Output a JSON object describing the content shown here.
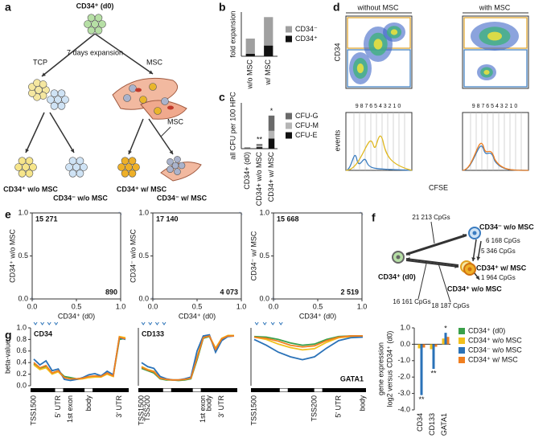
{
  "panel_labels": [
    "a",
    "b",
    "c",
    "d",
    "e",
    "f",
    "g"
  ],
  "diagram_a": {
    "source": "CD34⁺ (d0)",
    "step": "7 days expansion",
    "left_condition": "TCP",
    "right_condition": "MSC",
    "stroma_label": "MSC",
    "outcomes": [
      "CD34⁺ w/o MSC",
      "CD34⁻ w/o MSC",
      "CD34⁺ w/ MSC",
      "CD34⁻ w/ MSC"
    ]
  },
  "flow_d": {
    "columns": [
      "without MSC",
      "with MSC"
    ],
    "top_y_label": "CD34",
    "bottom_y_label": "events",
    "x_label": "CFSE",
    "division_labels": [
      "9 8 7 6 5 4 3 2 1 0",
      "9 8 7 6 5 4 3 2 1 0"
    ]
  },
  "network_f": {
    "nodes": [
      "CD34⁻ w/o MSC",
      "CD34⁺ w/ MSC",
      "CD34⁺ w/o MSC",
      "CD34⁺ (d0)"
    ],
    "edge_labels": [
      "21 213 CpGs",
      "6 168 CpGs",
      "5 346 CpGs",
      "1 964 CpGs",
      "16 161 CpGs",
      "18 187 CpGs"
    ]
  },
  "chart_data": [
    {
      "type": "bar",
      "stacked": true,
      "y_label": "fold expansion",
      "categories": [
        "w/o MSC",
        "w/ MSC"
      ],
      "ylim": [
        0,
        700
      ],
      "series": [
        {
          "name": "CD34⁺",
          "color": "#111111",
          "values": [
            40,
            170
          ],
          "annotations": [
            null,
            "**"
          ]
        },
        {
          "name": "CD34⁻",
          "color": "#a0a0a0",
          "values": [
            240,
            450
          ]
        }
      ]
    },
    {
      "type": "bar",
      "stacked": true,
      "y_label": "all CFU per 100 HPC",
      "categories": [
        "CD34+ (d0)",
        "CD34+ w/o MSC",
        "CD34+ w/ MSC"
      ],
      "ylim": [
        0,
        90
      ],
      "annotations": [
        null,
        "**",
        "*"
      ],
      "series": [
        {
          "name": "CFU-E",
          "color": "#111111",
          "values": [
            1,
            3,
            20
          ]
        },
        {
          "name": "CFU-M",
          "color": "#b5b5b5",
          "values": [
            0.5,
            3,
            15
          ]
        },
        {
          "name": "CFU-G",
          "color": "#6a6a6a",
          "values": [
            1,
            3,
            30
          ]
        }
      ]
    },
    {
      "type": "scatter",
      "x_label": "CD34⁺ (d0)",
      "y_label": "CD34⁺ w/o MSC",
      "xlim": [
        0,
        1
      ],
      "ylim": [
        0,
        1
      ],
      "xticks": [
        {
          "value": 0,
          "label": "0.0"
        },
        0.5,
        {
          "value": 1,
          "label": "1.0"
        }
      ],
      "yticks": [
        {
          "value": 0,
          "label": "0.0"
        },
        0.5,
        {
          "value": 1,
          "label": "1.0"
        }
      ],
      "annotations": [
        "15 271",
        "890"
      ]
    },
    {
      "type": "scatter",
      "x_label": "CD34⁺ (d0)",
      "y_label": "CD34⁻ w/o MSC",
      "xlim": [
        0,
        1
      ],
      "ylim": [
        0,
        1
      ],
      "xticks": [
        {
          "value": 0,
          "label": "0.0"
        },
        0.5,
        {
          "value": 1,
          "label": "1.0"
        }
      ],
      "yticks": [
        {
          "value": 0,
          "label": "0.0"
        },
        0.5,
        {
          "value": 1,
          "label": "1.0"
        }
      ],
      "annotations": [
        "17 140",
        "4 073"
      ]
    },
    {
      "type": "scatter",
      "x_label": "CD34⁺ (d0)",
      "y_label": "CD34⁻ w/ MSC",
      "xlim": [
        0,
        1
      ],
      "ylim": [
        0,
        1
      ],
      "xticks": [
        {
          "value": 0,
          "label": "0.0"
        },
        0.5,
        {
          "value": 1,
          "label": "1.0"
        }
      ],
      "yticks": [
        {
          "value": 0,
          "label": "0.0"
        },
        0.5,
        {
          "value": 1,
          "label": "1.0"
        }
      ],
      "annotations": [
        "15 668",
        "2 519"
      ]
    },
    {
      "type": "line",
      "title": "CD34",
      "title_corner": "top-left",
      "y_label": "beta-value",
      "ylim": [
        0,
        1
      ],
      "yticks": [
        {
          "value": 0,
          "label": "0.0"
        },
        0.2,
        0.4,
        0.6,
        0.8,
        {
          "value": 1,
          "label": "1.0"
        }
      ],
      "categories": [
        "TSS1500",
        null,
        null,
        null,
        "5' UTR",
        null,
        "1st exon",
        null,
        null,
        "body",
        null,
        null,
        null,
        null,
        "3' UTR",
        null
      ],
      "series": [
        {
          "color": "#3aa04a",
          "values": [
            0.38,
            0.3,
            0.33,
            0.22,
            0.26,
            0.16,
            0.14,
            0.12,
            0.13,
            0.15,
            0.17,
            0.16,
            0.21,
            0.17,
            0.8,
            0.82
          ]
        },
        {
          "color": "#f2c01c",
          "values": [
            0.36,
            0.28,
            0.31,
            0.2,
            0.24,
            0.14,
            0.12,
            0.11,
            0.12,
            0.14,
            0.15,
            0.15,
            0.2,
            0.16,
            0.85,
            0.83
          ]
        },
        {
          "color": "#2a72b8",
          "values": [
            0.46,
            0.36,
            0.43,
            0.26,
            0.29,
            0.11,
            0.09,
            0.11,
            0.14,
            0.19,
            0.21,
            0.17,
            0.25,
            0.19,
            0.83,
            0.8
          ]
        },
        {
          "color": "#f07f20",
          "values": [
            0.4,
            0.31,
            0.35,
            0.22,
            0.26,
            0.14,
            0.12,
            0.12,
            0.13,
            0.16,
            0.17,
            0.16,
            0.22,
            0.17,
            0.84,
            0.81
          ]
        }
      ]
    },
    {
      "type": "line",
      "title": "CD133",
      "title_corner": "top-left",
      "ylim": [
        0,
        1
      ],
      "categories": [
        "TSS1500",
        "TSS200",
        null,
        null,
        null,
        null,
        null,
        null,
        null,
        null,
        "1st exon",
        "body",
        null,
        "3' UTR",
        null,
        null
      ],
      "series": [
        {
          "color": "#3aa04a",
          "values": [
            0.3,
            0.26,
            0.22,
            0.12,
            0.1,
            0.1,
            0.09,
            0.1,
            0.12,
            0.45,
            0.82,
            0.85,
            0.62,
            0.8,
            0.86,
            0.86
          ]
        },
        {
          "color": "#f2c01c",
          "values": [
            0.33,
            0.28,
            0.25,
            0.13,
            0.11,
            0.1,
            0.1,
            0.11,
            0.13,
            0.5,
            0.84,
            0.86,
            0.65,
            0.82,
            0.87,
            0.87
          ]
        },
        {
          "color": "#2a72b8",
          "values": [
            0.4,
            0.33,
            0.3,
            0.16,
            0.12,
            0.1,
            0.1,
            0.12,
            0.15,
            0.6,
            0.86,
            0.88,
            0.58,
            0.78,
            0.85,
            0.86
          ]
        },
        {
          "color": "#f07f20",
          "values": [
            0.32,
            0.27,
            0.24,
            0.13,
            0.11,
            0.1,
            0.1,
            0.11,
            0.13,
            0.48,
            0.83,
            0.86,
            0.63,
            0.81,
            0.86,
            0.86
          ]
        }
      ]
    },
    {
      "type": "line",
      "title": "GATA1",
      "title_corner": "bottom-right",
      "ylim": [
        0,
        1
      ],
      "categories": [
        "TSS1500",
        null,
        null,
        null,
        null,
        "TSS200",
        null,
        "5' UTR",
        null,
        "body"
      ],
      "series": [
        {
          "color": "#3aa04a",
          "values": [
            0.85,
            0.84,
            0.8,
            0.74,
            0.7,
            0.72,
            0.8,
            0.85,
            0.86,
            0.86
          ]
        },
        {
          "color": "#f2c01c",
          "values": [
            0.84,
            0.8,
            0.72,
            0.66,
            0.62,
            0.64,
            0.75,
            0.83,
            0.85,
            0.85
          ]
        },
        {
          "color": "#2a72b8",
          "values": [
            0.8,
            0.7,
            0.58,
            0.5,
            0.45,
            0.5,
            0.65,
            0.78,
            0.83,
            0.84
          ]
        },
        {
          "color": "#f07f20",
          "values": [
            0.84,
            0.82,
            0.77,
            0.7,
            0.67,
            0.69,
            0.78,
            0.84,
            0.86,
            0.86
          ]
        }
      ]
    },
    {
      "type": "bar",
      "y_label": [
        "gene expression",
        "log2 versus CD34⁺ (d0)"
      ],
      "categories": [
        "CD34",
        "CD133",
        "GATA1"
      ],
      "ylim": [
        -4,
        1
      ],
      "yticks": [
        {
          "value": -4,
          "label": "-4.0"
        },
        {
          "value": -3,
          "label": "-3.0"
        },
        {
          "value": -2,
          "label": "-2.0"
        },
        {
          "value": -1,
          "label": "-1.0"
        },
        {
          "value": 0,
          "label": "0.0"
        },
        {
          "value": 1,
          "label": "1.0"
        }
      ],
      "series": [
        {
          "name": "CD34⁺ (d0)",
          "color": "#3aa04a",
          "values": [
            0,
            0,
            0
          ]
        },
        {
          "name": "CD34⁺ w/o MSC",
          "color": "#f2c01c",
          "values": [
            -0.25,
            -0.3,
            0.35
          ]
        },
        {
          "name": "CD34⁻ w/o MSC",
          "color": "#2a72b8",
          "values": [
            -3.1,
            -1.5,
            0.7
          ],
          "annotations": [
            "**",
            "**",
            "*"
          ]
        },
        {
          "name": "CD34⁺ w/ MSC",
          "color": "#f07f20",
          "values": [
            -0.2,
            -0.15,
            0.45
          ]
        }
      ]
    }
  ]
}
